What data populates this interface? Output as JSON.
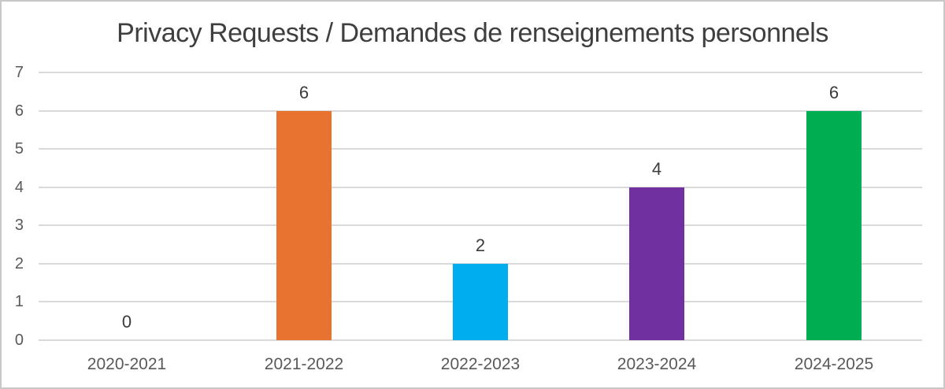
{
  "chart_data": {
    "type": "bar",
    "title": "Privacy Requests / Demandes de renseignements personnels",
    "categories": [
      "2020-2021",
      "2021-2022",
      "2022-2023",
      "2023-2024",
      "2024-2025"
    ],
    "values": [
      0,
      6,
      2,
      4,
      6
    ],
    "data_labels": [
      "0",
      "6",
      "2",
      "4",
      "6"
    ],
    "bar_colors": [
      null,
      "#E8722F",
      "#00AEEF",
      "#7030A0",
      "#00AD50"
    ],
    "xlabel": "",
    "ylabel": "",
    "ylim": [
      0,
      7
    ],
    "yticks": [
      0,
      1,
      2,
      3,
      4,
      5,
      6,
      7
    ],
    "ytick_labels": [
      "0",
      "1",
      "2",
      "3",
      "4",
      "5",
      "6",
      "7"
    ],
    "grid": true,
    "gridline_orientation": "horizontal",
    "legend_position": "none",
    "colors": {
      "title_text": "#3f3f3f",
      "axis_label_text": "#595959",
      "value_label_text": "#3b3b3b",
      "gridline": "#d9d9d9",
      "frame_border": "#c8c8c8",
      "background": "#ffffff"
    }
  }
}
